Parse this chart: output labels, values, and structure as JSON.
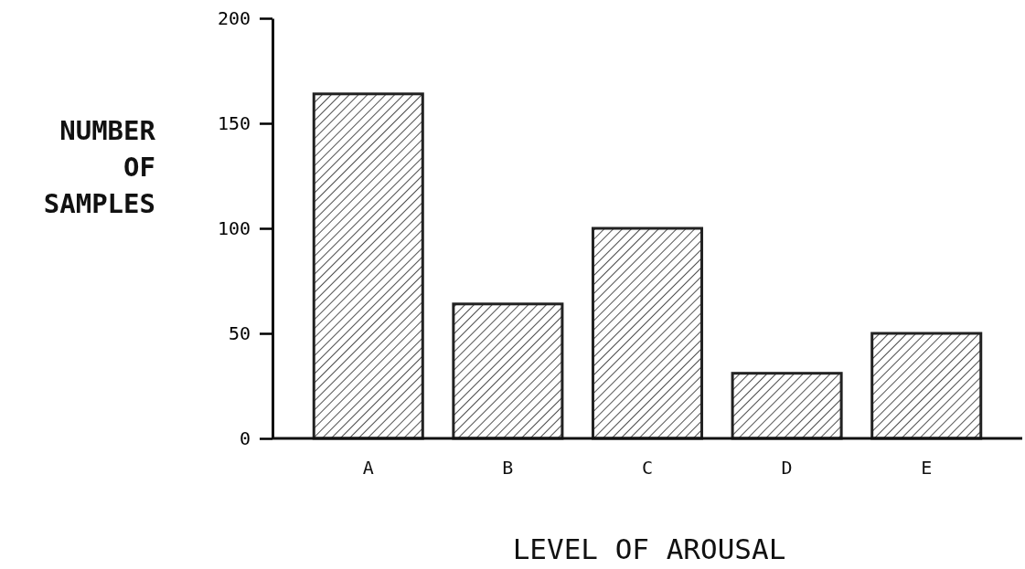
{
  "chart_data": {
    "type": "bar",
    "xlabel": "LEVEL OF AROUSAL",
    "ylabel": "NUMBER\nOF\nSAMPLES",
    "categories": [
      "A",
      "B",
      "C",
      "D",
      "E"
    ],
    "values": [
      164,
      64,
      100,
      31,
      50
    ],
    "color": "#222222",
    "ylim": [
      0,
      200
    ],
    "yticks": [
      0,
      50,
      100,
      150,
      200
    ],
    "grid": false
  }
}
